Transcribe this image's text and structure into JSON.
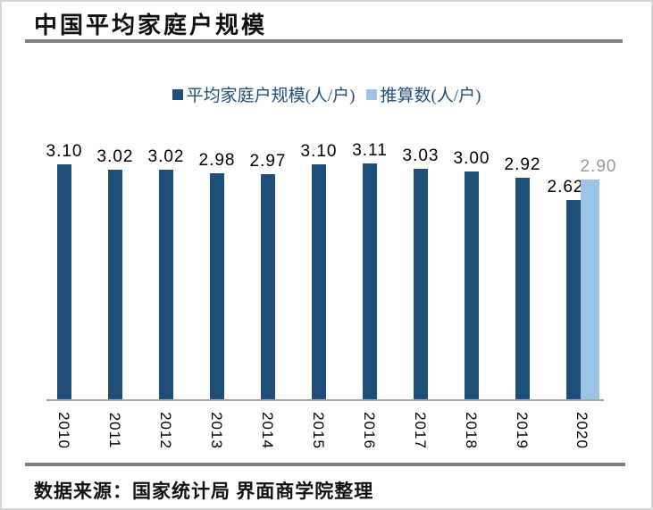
{
  "header": {
    "title": "中国平均家庭户规模"
  },
  "footer": {
    "source_note": "数据来源：国家统计局 界面商学院整理"
  },
  "legend": {
    "items": [
      {
        "label": "平均家庭户规模(人/户)",
        "color": "#1F4E79"
      },
      {
        "label": "推算数(人/户)",
        "color": "#9DC3E6"
      }
    ]
  },
  "colors": {
    "bar_actual": "#1F4E79",
    "bar_estimated": "#9DC3E6",
    "label_actual": "#000000",
    "label_estimated": "#999999",
    "divider": "#808080",
    "axis_line": "#A6A6A6",
    "legend_text": "#1F4E79"
  },
  "chart_data": {
    "type": "bar",
    "title": "中国平均家庭户规模",
    "categories": [
      "2010",
      "2011",
      "2012",
      "2013",
      "2014",
      "2015",
      "2016",
      "2017",
      "2018",
      "2019",
      "2020"
    ],
    "series": [
      {
        "name": "平均家庭户规模(人/户)",
        "color": "#1F4E79",
        "values": [
          3.1,
          3.02,
          3.02,
          2.98,
          2.97,
          3.1,
          3.11,
          3.03,
          3.0,
          2.92,
          2.62
        ]
      },
      {
        "name": "推算数(人/户)",
        "color": "#9DC3E6",
        "values": [
          null,
          null,
          null,
          null,
          null,
          null,
          null,
          null,
          null,
          null,
          2.9
        ]
      }
    ],
    "ylim": [
      0,
      3.3
    ],
    "grid": false,
    "y_axis_visible": false,
    "data_labels": true,
    "data_label_decimals": 2,
    "x_tick_rotation_deg": 90,
    "legend_position": "top"
  }
}
